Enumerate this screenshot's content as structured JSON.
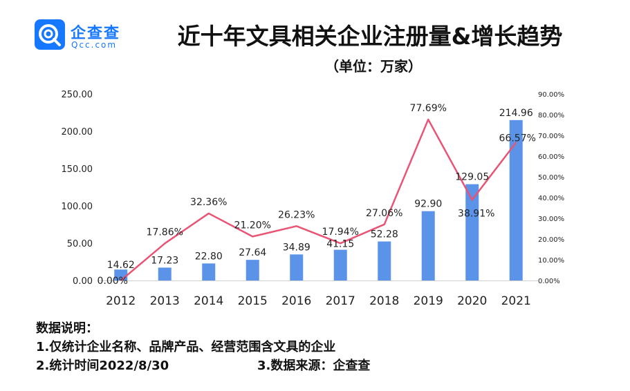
{
  "logo": {
    "cn": "企查查",
    "en": "Qcc.com"
  },
  "title": "近十年文具相关企业注册量&增长趋势",
  "subtitle": "（单位：万家）",
  "colors": {
    "bar": "#5b93e8",
    "line": "#ea5474",
    "brand": "#1677ff"
  },
  "notes": {
    "heading": "数据说明：",
    "item1": "1.仅统计企业名称、品牌产品、经营范围含文具的企业",
    "item2": "2.统计时间2022/8/30",
    "item3": "3.数据来源：企查查"
  },
  "chart_data": {
    "type": "bar+line",
    "categories": [
      "2012",
      "2013",
      "2014",
      "2015",
      "2016",
      "2017",
      "2018",
      "2019",
      "2020",
      "2021"
    ],
    "bar": {
      "values": [
        14.62,
        17.23,
        22.8,
        27.64,
        34.89,
        41.15,
        52.28,
        92.9,
        129.05,
        214.96
      ],
      "labels": [
        "14.62",
        "17.23",
        "22.80",
        "27.64",
        "34.89",
        "41.15",
        "52.28",
        "92.90",
        "129.05",
        "214.96"
      ]
    },
    "line": {
      "values": [
        0.0,
        17.86,
        32.36,
        21.2,
        26.23,
        17.94,
        27.06,
        77.69,
        38.91,
        66.57
      ],
      "labels": [
        "0.00%",
        "17.86%",
        "32.36%",
        "21.20%",
        "26.23%",
        "17.94%",
        "27.06%",
        "77.69%",
        "38.91%",
        "66.57%"
      ]
    },
    "left_axis": {
      "ylim": [
        0,
        250
      ],
      "ticks": [
        "0.00",
        "50.00",
        "100.00",
        "150.00",
        "200.00",
        "250.00"
      ]
    },
    "right_axis": {
      "ylim": [
        0,
        90
      ],
      "ticks": [
        "0.00%",
        "10.00%",
        "20.00%",
        "30.00%",
        "40.00%",
        "50.00%",
        "60.00%",
        "70.00%",
        "80.00%",
        "90.00%"
      ]
    },
    "grid": false
  }
}
